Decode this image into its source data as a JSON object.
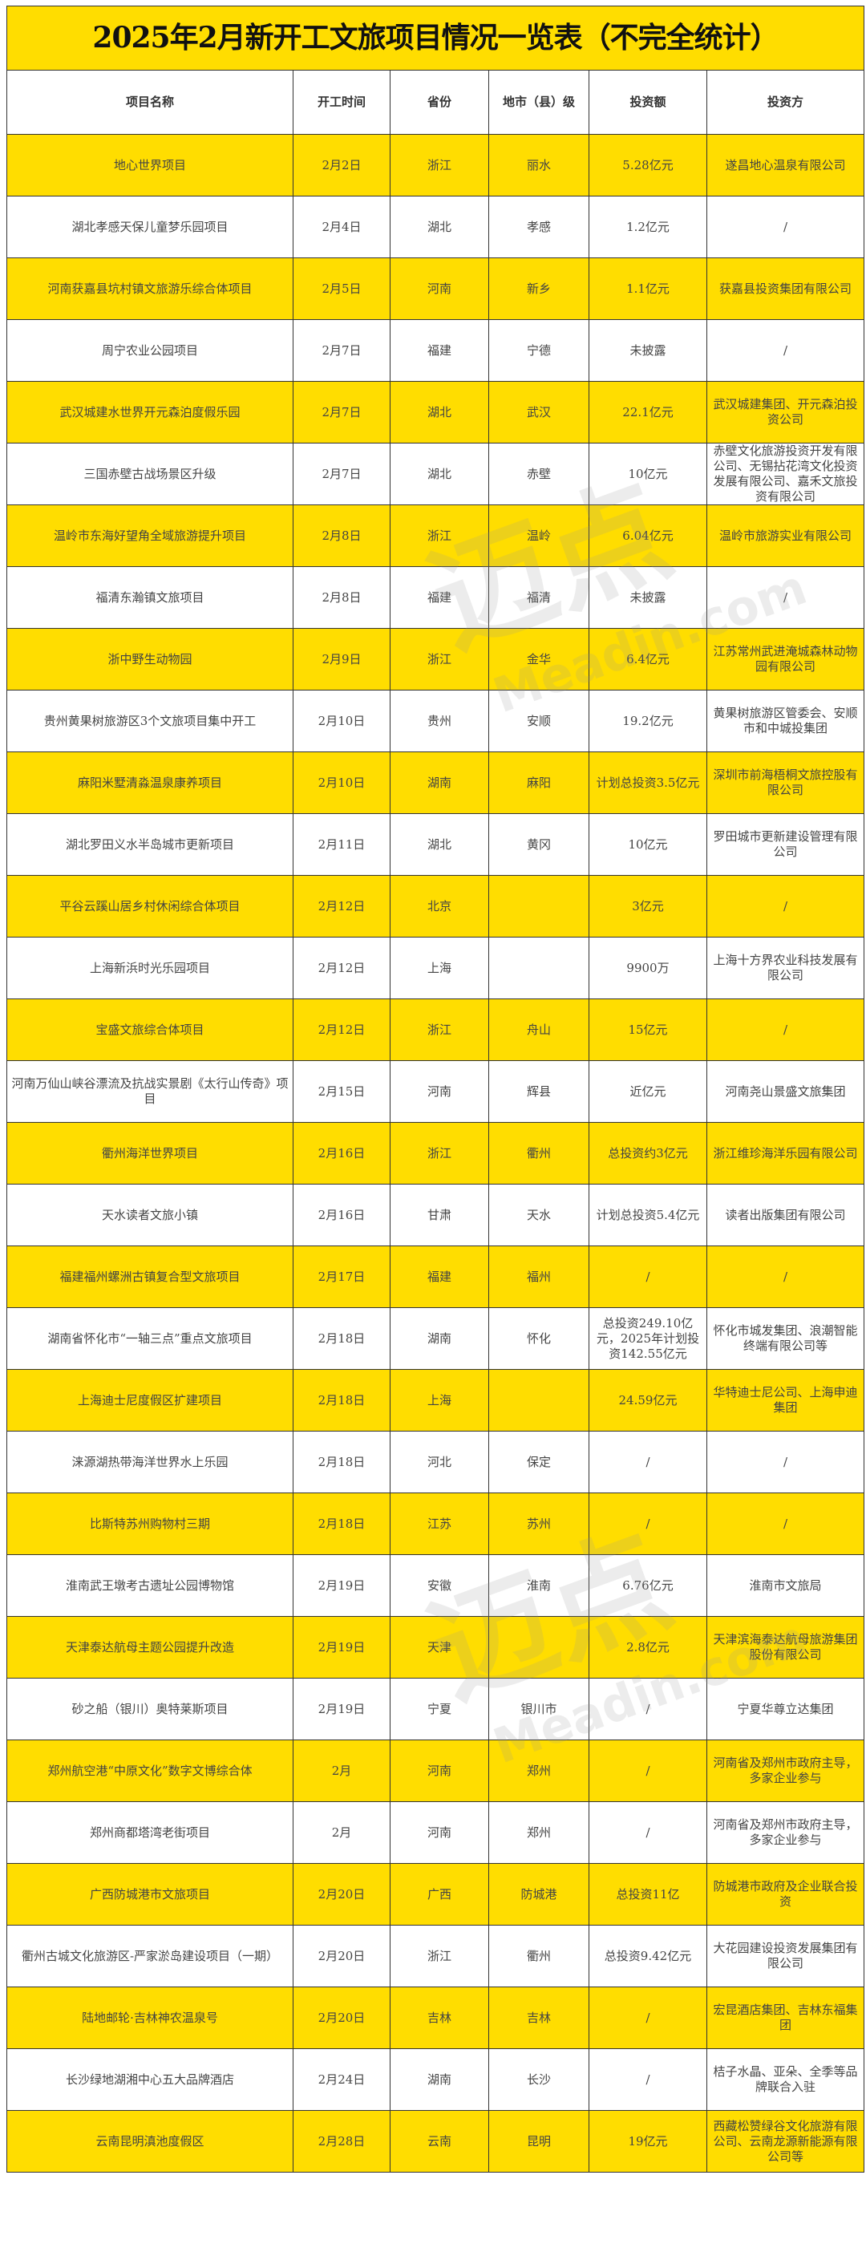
{
  "title": "2025年2月新开工文旅项目情况一览表（不完全统计）",
  "colors": {
    "accent": "#FFDD00",
    "border": "#333333"
  },
  "watermark": {
    "cn": "迈点",
    "en": "Meadin.com"
  },
  "columns": [
    "项目名称",
    "开工时间",
    "省份",
    "地市（县）级",
    "投资额",
    "投资方"
  ],
  "rows": [
    [
      "地心世界项目",
      "2月2日",
      "浙江",
      "丽水",
      "5.28亿元",
      "遂昌地心温泉有限公司"
    ],
    [
      "湖北孝感天保儿童梦乐园项目",
      "2月4日",
      "湖北",
      "孝感",
      "1.2亿元",
      "/"
    ],
    [
      "河南获嘉县坑村镇文旅游乐综合体项目",
      "2月5日",
      "河南",
      "新乡",
      "1.1亿元",
      "获嘉县投资集团有限公司"
    ],
    [
      "周宁农业公园项目",
      "2月7日",
      "福建",
      "宁德",
      "未披露",
      "/"
    ],
    [
      "武汉城建水世界开元森泊度假乐园",
      "2月7日",
      "湖北",
      "武汉",
      "22.1亿元",
      "武汉城建集团、开元森泊投资公司"
    ],
    [
      "三国赤壁古战场景区升级",
      "2月7日",
      "湖北",
      "赤壁",
      "10亿元",
      "赤壁文化旅游投资开发有限公司、无锡拈花湾文化投资发展有限公司、嘉禾文旅投资有限公司"
    ],
    [
      "温岭市东海好望角全域旅游提升项目",
      "2月8日",
      "浙江",
      "温岭",
      "6.04亿元",
      "温岭市旅游实业有限公司"
    ],
    [
      "福清东瀚镇文旅项目",
      "2月8日",
      "福建",
      "福清",
      "未披露",
      "/"
    ],
    [
      "浙中野生动物园",
      "2月9日",
      "浙江",
      "金华",
      "6.4亿元",
      "江苏常州武进淹城森林动物园有限公司"
    ],
    [
      "贵州黄果树旅游区3个文旅项目集中开工",
      "2月10日",
      "贵州",
      "安顺",
      "19.2亿元",
      "黄果树旅游区管委会、安顺市和中城投集团"
    ],
    [
      "麻阳米墅清淼温泉康养项目",
      "2月10日",
      "湖南",
      "麻阳",
      "计划总投资3.5亿元",
      "深圳市前海梧桐文旅控股有限公司"
    ],
    [
      "湖北罗田义水半岛城市更新项目",
      "2月11日",
      "湖北",
      "黄冈",
      "10亿元",
      "罗田城市更新建设管理有限公司"
    ],
    [
      "平谷云蹊山居乡村休闲综合体项目",
      "2月12日",
      "北京",
      "",
      "3亿元",
      "/"
    ],
    [
      "上海新浜时光乐园项目",
      "2月12日",
      "上海",
      "",
      "9900万",
      "上海十方界农业科技发展有限公司"
    ],
    [
      "宝盛文旅综合体项目",
      "2月12日",
      "浙江",
      "舟山",
      "15亿元",
      "/"
    ],
    [
      "河南万仙山峡谷漂流及抗战实景剧《太行山传奇》项目",
      "2月15日",
      "河南",
      "辉县",
      "近亿元",
      "河南尧山景盛文旅集团"
    ],
    [
      "衢州海洋世界项目",
      "2月16日",
      "浙江",
      "衢州",
      "总投资约3亿元",
      "浙江维珍海洋乐园有限公司"
    ],
    [
      "天水读者文旅小镇",
      "2月16日",
      "甘肃",
      "天水",
      "计划总投资5.4亿元",
      "读者出版集团有限公司"
    ],
    [
      "福建福州螺洲古镇复合型文旅项目",
      "2月17日",
      "福建",
      "福州",
      "/",
      "/"
    ],
    [
      "湖南省怀化市“一轴三点”重点文旅项目",
      "2月18日",
      "湖南",
      "怀化",
      "总投资249.10亿元，2025年计划投资142.55亿元",
      "怀化市城发集团、浪潮智能终端有限公司等"
    ],
    [
      "上海迪士尼度假区扩建项目",
      "2月18日",
      "上海",
      "",
      "24.59亿元",
      "华特迪士尼公司、上海申迪集团"
    ],
    [
      "涞源湖热带海洋世界水上乐园",
      "2月18日",
      "河北",
      "保定",
      "/",
      "/"
    ],
    [
      "比斯特苏州购物村三期",
      "2月18日",
      "江苏",
      "苏州",
      "/",
      "/"
    ],
    [
      "淮南武王墩考古遗址公园博物馆",
      "2月19日",
      "安徽",
      "淮南",
      "6.76亿元",
      "淮南市文旅局"
    ],
    [
      "天津泰达航母主题公园提升改造",
      "2月19日",
      "天津",
      "",
      "2.8亿元",
      "天津滨海泰达航母旅游集团股份有限公司"
    ],
    [
      "砂之船（银川）奥特莱斯项目",
      "2月19日",
      "宁夏",
      "银川市",
      "/",
      "宁夏华尊立达集团"
    ],
    [
      "郑州航空港“中原文化”数字文博综合体",
      "2月",
      "河南",
      "郑州",
      "/",
      "河南省及郑州市政府主导，多家企业参与"
    ],
    [
      "郑州商都塔湾老街项目",
      "2月",
      "河南",
      "郑州",
      "/",
      "河南省及郑州市政府主导，多家企业参与"
    ],
    [
      "广西防城港市文旅项目",
      "2月20日",
      "广西",
      "防城港",
      "总投资11亿",
      "防城港市政府及企业联合投资"
    ],
    [
      "衢州古城文化旅游区-严家淤岛建设项目（一期）",
      "2月20日",
      "浙江",
      "衢州",
      "总投资9.42亿元",
      "大花园建设投资发展集团有限公司"
    ],
    [
      "陆地邮轮·吉林神农温泉号",
      "2月20日",
      "吉林",
      "吉林",
      "/",
      "宏昆酒店集团、吉林东福集团"
    ],
    [
      "长沙绿地湖湘中心五大品牌酒店",
      "2月24日",
      "湖南",
      "长沙",
      "/",
      "桔子水晶、亚朵、全季等品牌联合入驻"
    ],
    [
      "云南昆明滇池度假区",
      "2月28日",
      "云南",
      "昆明",
      "19亿元",
      "西藏松赞绿谷文化旅游有限公司、云南龙源新能源有限公司等"
    ]
  ]
}
